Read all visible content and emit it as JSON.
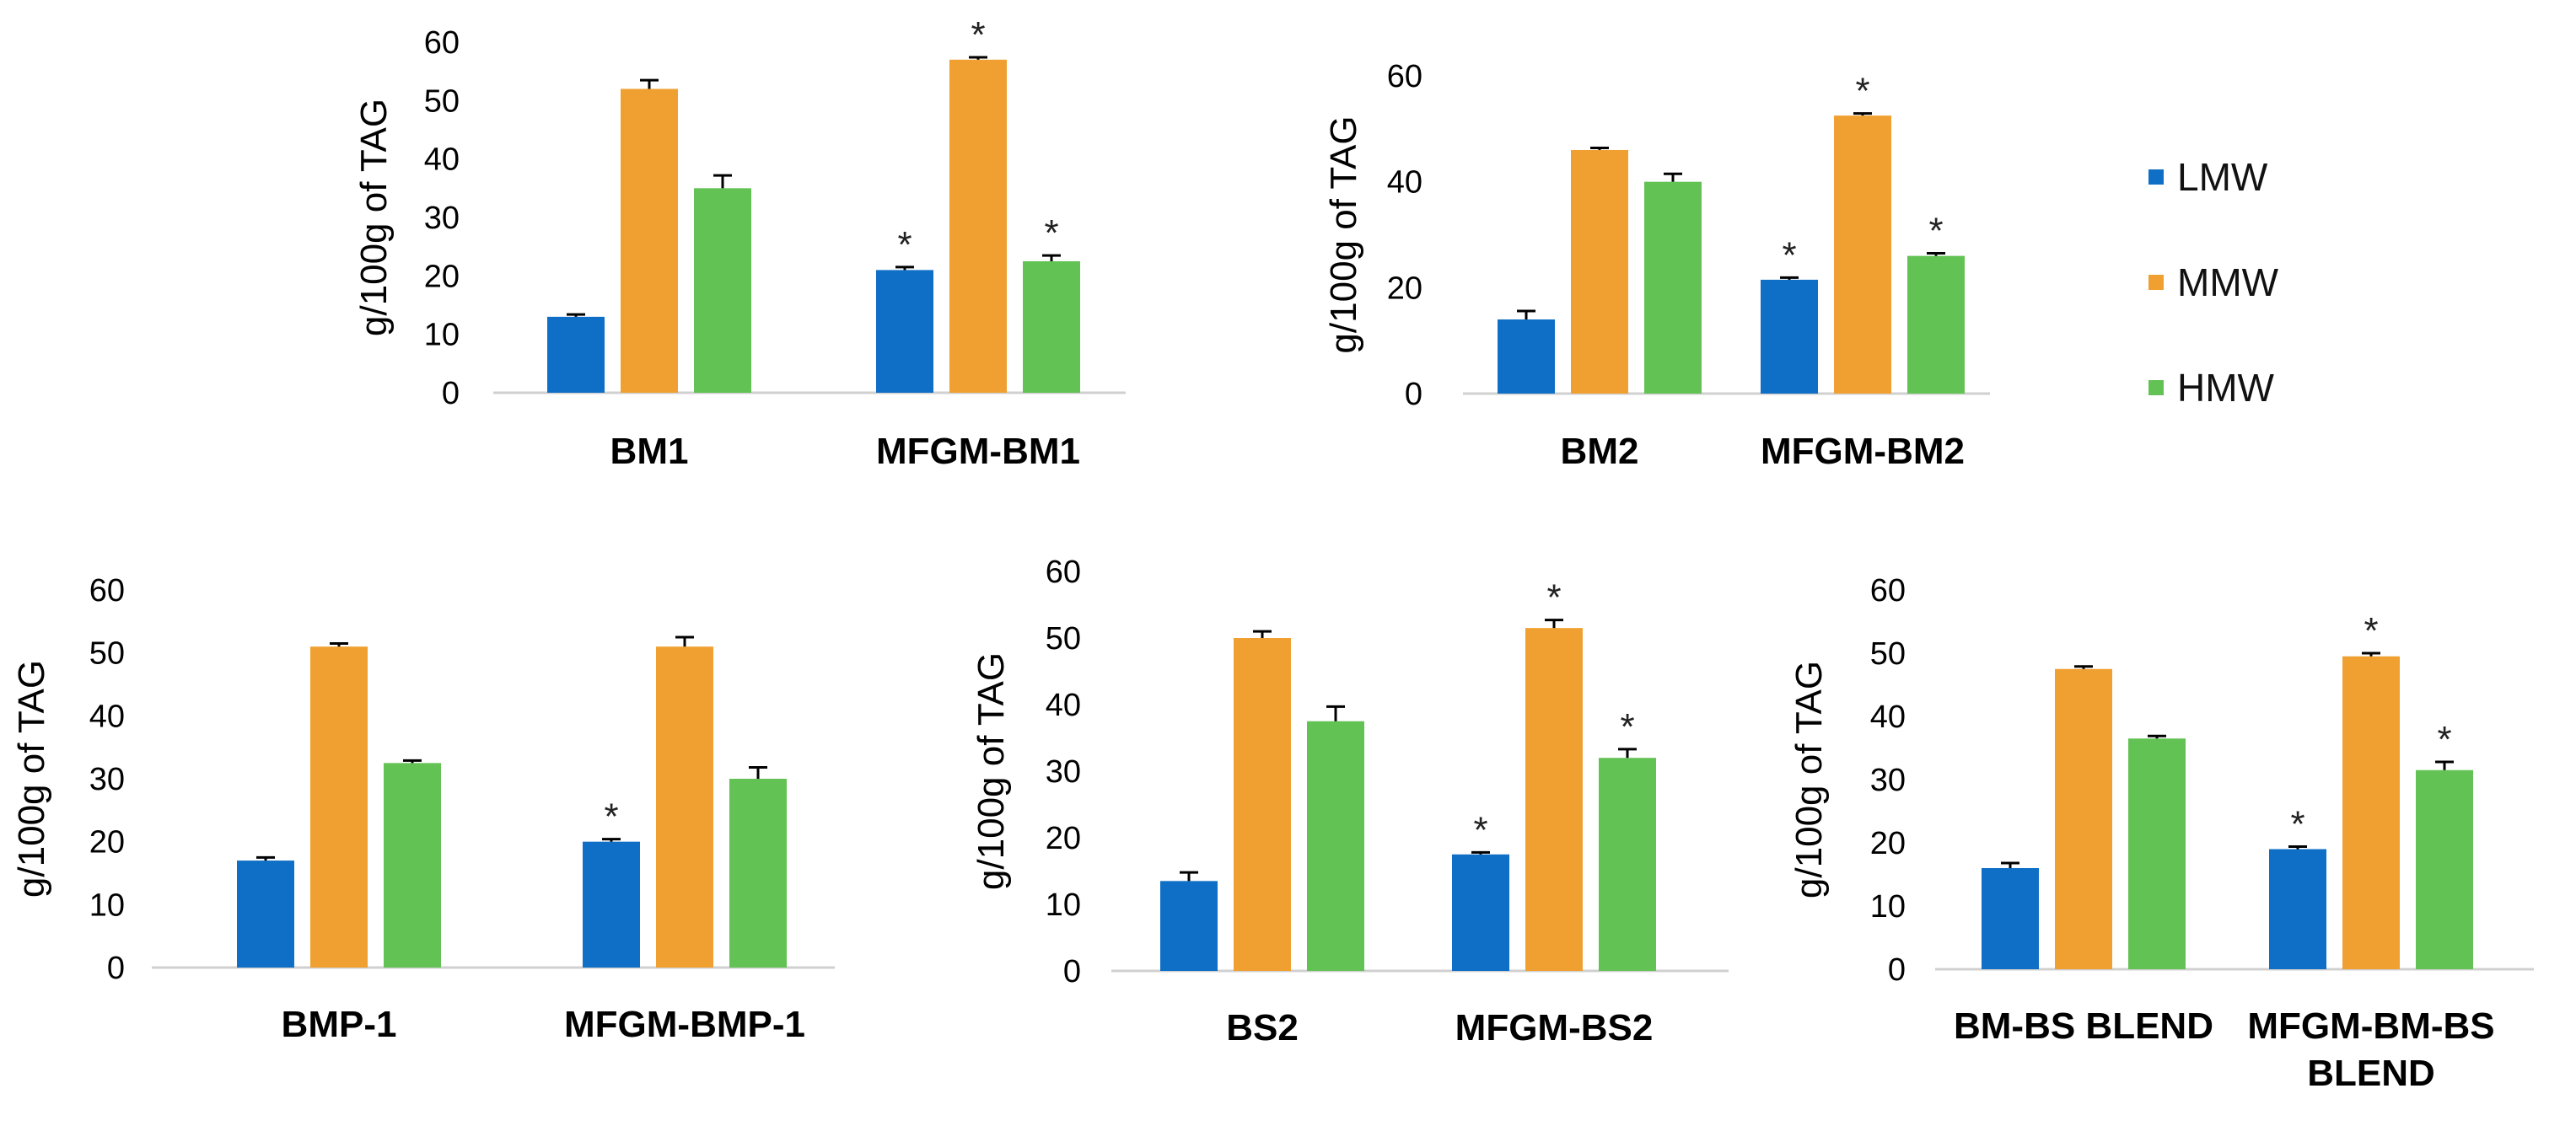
{
  "legend": [
    {
      "name": "LMW",
      "color": "#0f6fc6"
    },
    {
      "name": "MMW",
      "color": "#f0a030"
    },
    {
      "name": "HMW",
      "color": "#63c254"
    }
  ],
  "colors": {
    "axis": "#d0d0d0",
    "error_bar": "#000000",
    "text": "#000000"
  },
  "chart_data": [
    {
      "type": "bar",
      "title": "",
      "xlabel": "",
      "ylabel": "g/100g of TAG",
      "ylim": [
        0,
        60
      ],
      "yticks": [
        "0",
        "10",
        "20",
        "30",
        "40",
        "50",
        "60"
      ],
      "categories": [
        "BM1",
        "MFGM-BM1"
      ],
      "series": [
        {
          "name": "LMW",
          "values": [
            13,
            21
          ],
          "errors": [
            0.4,
            0.5
          ],
          "significance": [
            "",
            "*"
          ]
        },
        {
          "name": "MMW",
          "values": [
            52,
            57
          ],
          "errors": [
            1.5,
            0.4
          ],
          "significance": [
            "",
            "*"
          ]
        },
        {
          "name": "HMW",
          "values": [
            35,
            22.5
          ],
          "errors": [
            2.2,
            1.0
          ],
          "significance": [
            "",
            "*"
          ]
        }
      ]
    },
    {
      "type": "bar",
      "title": "",
      "xlabel": "",
      "ylabel": "g/100g of TAG",
      "ylim": [
        0,
        60
      ],
      "yticks": [
        "0",
        "20",
        "40",
        "60"
      ],
      "categories": [
        "BM2",
        "MFGM-BM2"
      ],
      "series": [
        {
          "name": "LMW",
          "values": [
            14,
            21.5
          ],
          "errors": [
            1.6,
            0.4
          ],
          "significance": [
            "",
            "*"
          ]
        },
        {
          "name": "MMW",
          "values": [
            46,
            52.5
          ],
          "errors": [
            0.4,
            0.4
          ],
          "significance": [
            "",
            "*"
          ]
        },
        {
          "name": "HMW",
          "values": [
            40,
            26
          ],
          "errors": [
            1.5,
            0.5
          ],
          "significance": [
            "",
            "*"
          ]
        }
      ]
    },
    {
      "type": "bar",
      "title": "",
      "xlabel": "",
      "ylabel": "g/100g of TAG",
      "ylim": [
        0,
        60
      ],
      "yticks": [
        "0",
        "10",
        "20",
        "30",
        "40",
        "50",
        "60"
      ],
      "categories": [
        "BMP-1",
        "MFGM-BMP-1"
      ],
      "series": [
        {
          "name": "LMW",
          "values": [
            17,
            20
          ],
          "errors": [
            0.5,
            0.4
          ],
          "significance": [
            "",
            "*"
          ]
        },
        {
          "name": "MMW",
          "values": [
            51,
            51
          ],
          "errors": [
            0.5,
            1.5
          ],
          "significance": [
            "",
            ""
          ]
        },
        {
          "name": "HMW",
          "values": [
            32.5,
            30
          ],
          "errors": [
            0.4,
            1.8
          ],
          "significance": [
            "",
            ""
          ]
        }
      ]
    },
    {
      "type": "bar",
      "title": "",
      "xlabel": "",
      "ylabel": "g/100g of TAG",
      "ylim": [
        0,
        60
      ],
      "yticks": [
        "0",
        "10",
        "20",
        "30",
        "40",
        "50",
        "60"
      ],
      "categories": [
        "BS2",
        "MFGM-BS2"
      ],
      "series": [
        {
          "name": "LMW",
          "values": [
            13.5,
            17.5
          ],
          "errors": [
            1.3,
            0.3
          ],
          "significance": [
            "",
            "*"
          ]
        },
        {
          "name": "MMW",
          "values": [
            50,
            51.5
          ],
          "errors": [
            1.0,
            1.2
          ],
          "significance": [
            "",
            "*"
          ]
        },
        {
          "name": "HMW",
          "values": [
            37.5,
            32
          ],
          "errors": [
            2.2,
            1.3
          ],
          "significance": [
            "",
            "*"
          ]
        }
      ]
    },
    {
      "type": "bar",
      "title": "",
      "xlabel": "",
      "ylabel": "g/100g of TAG",
      "ylim": [
        0,
        60
      ],
      "yticks": [
        "0",
        "10",
        "20",
        "30",
        "40",
        "50",
        "60"
      ],
      "categories": [
        "BM-BS BLEND",
        "MFGM-BM-BS\nBLEND"
      ],
      "series": [
        {
          "name": "LMW",
          "values": [
            16,
            19
          ],
          "errors": [
            0.8,
            0.4
          ],
          "significance": [
            "",
            "*"
          ]
        },
        {
          "name": "MMW",
          "values": [
            47.5,
            49.5
          ],
          "errors": [
            0.4,
            0.5
          ],
          "significance": [
            "",
            "*"
          ]
        },
        {
          "name": "HMW",
          "values": [
            36.5,
            31.5
          ],
          "errors": [
            0.4,
            1.3
          ],
          "significance": [
            "",
            "*"
          ]
        }
      ]
    }
  ]
}
